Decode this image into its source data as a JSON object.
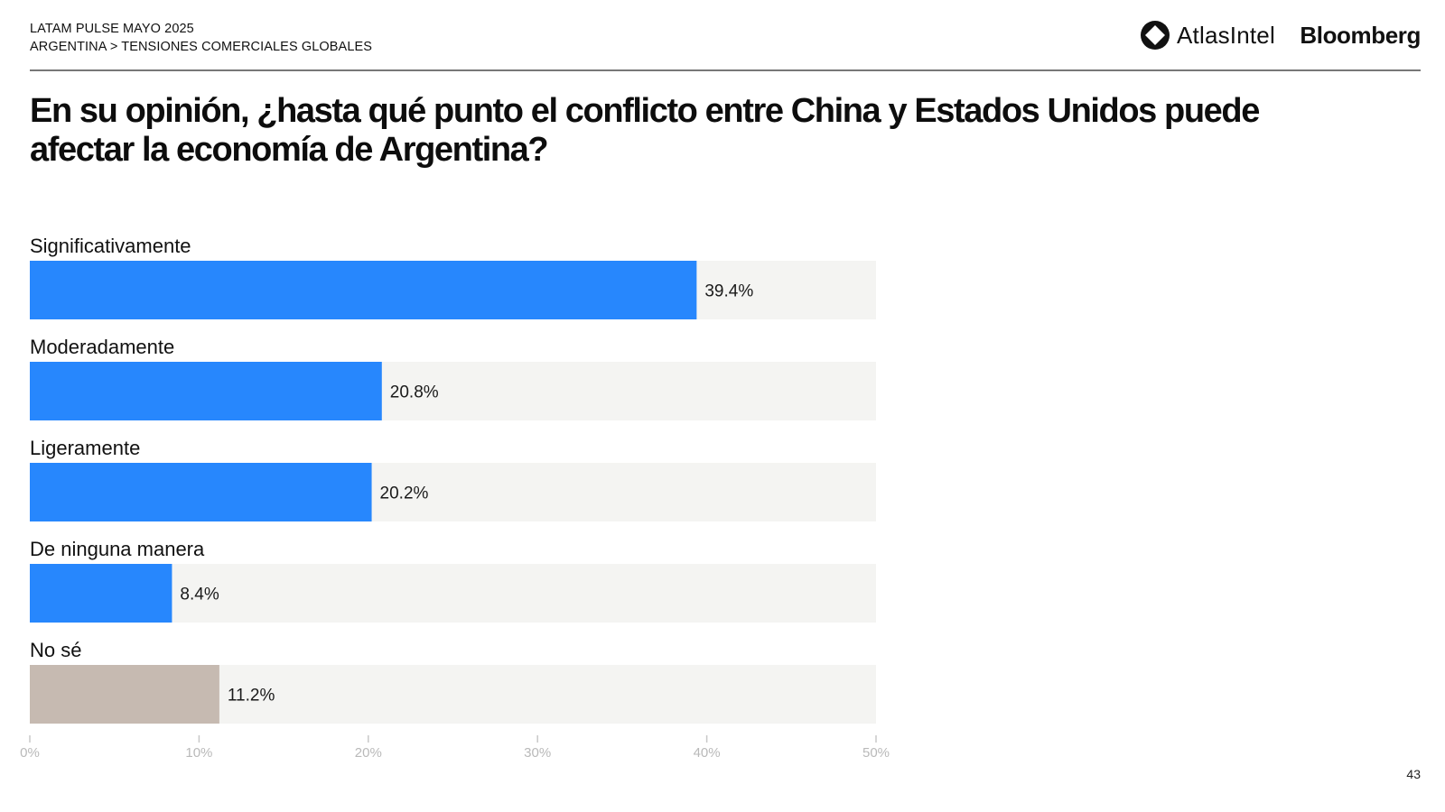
{
  "header": {
    "survey": "LATAM PULSE MAYO 2025",
    "breadcrumb": "ARGENTINA > TENSIONES COMERCIALES GLOBALES",
    "brand_atlas": "AtlasIntel",
    "brand_bloomberg": "Bloomberg"
  },
  "page_number": "43",
  "colors": {
    "bar": "#2787fd",
    "bar_unknown": "#c6bab1",
    "track": "#f4f4f2",
    "axis": "#c8c8c8",
    "axis_text": "#b9b9b9"
  },
  "chart_data": {
    "type": "bar",
    "orientation": "horizontal",
    "title": "En su opinión, ¿hasta qué punto el conflicto entre China y Estados Unidos puede afectar la economía de Argentina?",
    "categories": [
      "Significativamente",
      "Moderadamente",
      "Ligeramente",
      "De ninguna manera",
      "No sé"
    ],
    "values": [
      39.4,
      20.8,
      20.2,
      8.4,
      11.2
    ],
    "value_labels": [
      "39.4%",
      "20.8%",
      "20.2%",
      "8.4%",
      "11.2%"
    ],
    "bar_colors": [
      "#2787fd",
      "#2787fd",
      "#2787fd",
      "#2787fd",
      "#c6bab1"
    ],
    "xlim": [
      0,
      50
    ],
    "xticks": [
      0,
      10,
      20,
      30,
      40,
      50
    ],
    "xtick_labels": [
      "0%",
      "10%",
      "20%",
      "30%",
      "40%",
      "50%"
    ],
    "grid": false,
    "legend": "none"
  }
}
